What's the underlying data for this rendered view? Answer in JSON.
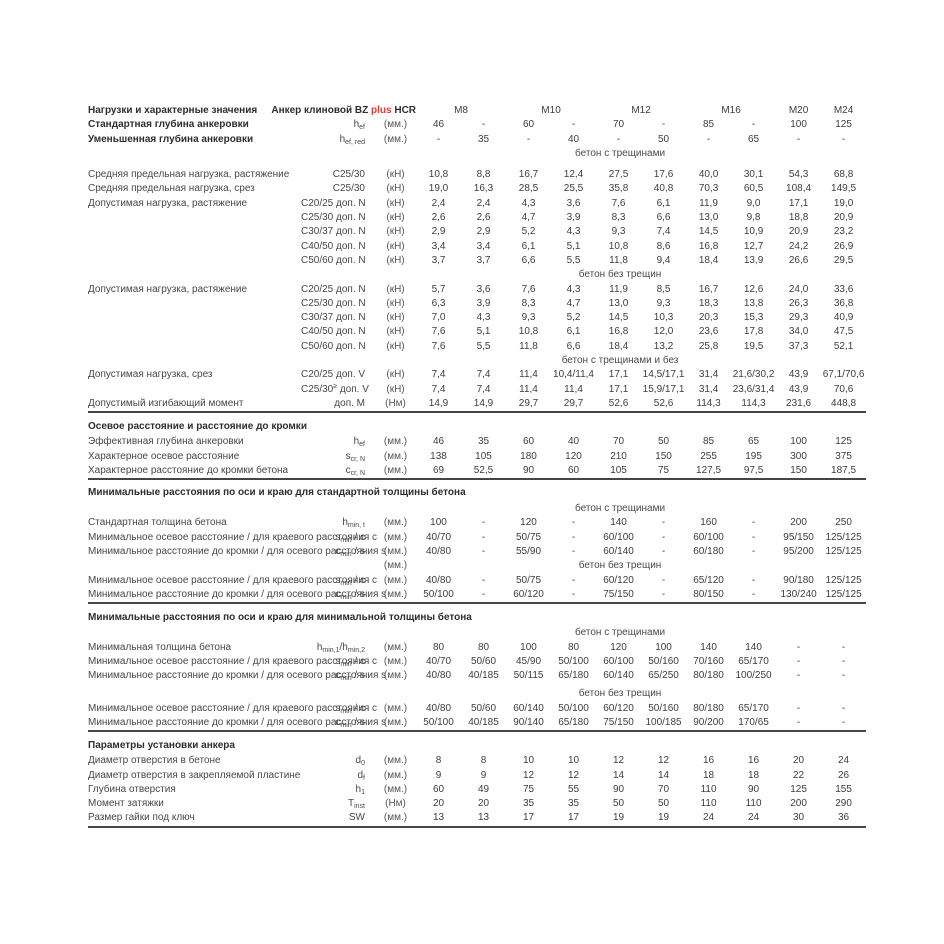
{
  "meta": {
    "document_type": "anchor-specification-table",
    "accent_red": "#e6392f",
    "rule_color": "#454545",
    "text_color": "#474747"
  },
  "table": {
    "header": {
      "label": "Нагрузки и характерные значения",
      "product": {
        "pre": "Анкер клиновой BZ",
        "highlight": "plus",
        "post": "HCR"
      },
      "sizes": [
        "M8",
        "M10",
        "M12",
        "M16",
        "M20",
        "M24"
      ]
    },
    "units": {
      "mm": "(мм.)",
      "kn": "(кН)",
      "nm": "(Нм)"
    },
    "rows": [
      {
        "k": "r",
        "b": true,
        "l": "Стандартная глубина анкеровки",
        "sym": [
          [
            "t",
            "h"
          ],
          [
            "s",
            "ef"
          ]
        ],
        "u": "(мм.)",
        "v": [
          "46",
          "-",
          "60",
          "-",
          "70",
          "-",
          "85",
          "-",
          "100",
          "125"
        ]
      },
      {
        "k": "r",
        "b": true,
        "l": "Уменьшенная глубина анкеровки",
        "sym": [
          [
            "t",
            "h"
          ],
          [
            "s",
            "ef, red"
          ]
        ],
        "u": "(мм.)",
        "v": [
          "-",
          "35",
          "-",
          "40",
          "-",
          "50",
          "-",
          "65",
          "-",
          "-"
        ]
      },
      {
        "k": "s",
        "text": "бетон с трещинами"
      },
      {
        "k": "g",
        "h": 7
      },
      {
        "k": "r",
        "l": "Средняя предельная нагрузка, растяжение",
        "sym": [
          [
            "t",
            "C25/30"
          ]
        ],
        "u": "(кН)",
        "v": [
          "10,8",
          "8,8",
          "16,7",
          "12,4",
          "27,5",
          "17,6",
          "40,0",
          "30,1",
          "54,3",
          "68,8"
        ]
      },
      {
        "k": "r",
        "l": "Средняя предельная нагрузка, срез",
        "sym": [
          [
            "t",
            "C25/30"
          ]
        ],
        "u": "(кН)",
        "v": [
          "19,0",
          "16,3",
          "28,5",
          "25,5",
          "35,8",
          "40,8",
          "70,3",
          "60,5",
          "108,4",
          "149,5"
        ]
      },
      {
        "k": "r",
        "l": "Допустимая нагрузка, растяжение",
        "sym": [
          [
            "t",
            "C20/25 доп. N"
          ]
        ],
        "u": "(кН)",
        "v": [
          "2,4",
          "2,4",
          "4,3",
          "3,6",
          "7,6",
          "6,1",
          "11,9",
          "9,0",
          "17,1",
          "19,0"
        ]
      },
      {
        "k": "r",
        "l": "",
        "sym": [
          [
            "t",
            "C25/30 доп. N"
          ]
        ],
        "u": "(кН)",
        "v": [
          "2,6",
          "2,6",
          "4,7",
          "3,9",
          "8,3",
          "6,6",
          "13,0",
          "9,8",
          "18,8",
          "20,9"
        ]
      },
      {
        "k": "r",
        "l": "",
        "sym": [
          [
            "t",
            "C30/37 доп. N"
          ]
        ],
        "u": "(кН)",
        "v": [
          "2,9",
          "2,9",
          "5,2",
          "4,3",
          "9,3",
          "7,4",
          "14,5",
          "10,9",
          "20,9",
          "23,2"
        ]
      },
      {
        "k": "r",
        "l": "",
        "sym": [
          [
            "t",
            "C40/50 доп. N"
          ]
        ],
        "u": "(кН)",
        "v": [
          "3,4",
          "3,4",
          "6,1",
          "5,1",
          "10,8",
          "8,6",
          "16,8",
          "12,7",
          "24,2",
          "26,9"
        ]
      },
      {
        "k": "r",
        "l": "",
        "sym": [
          [
            "t",
            "C50/60 доп. N"
          ]
        ],
        "u": "(кН)",
        "v": [
          "3,7",
          "3,7",
          "6,6",
          "5,5",
          "11,8",
          "9,4",
          "18,4",
          "13,9",
          "26,6",
          "29,5"
        ]
      },
      {
        "k": "s",
        "text": "бетон без трещин"
      },
      {
        "k": "r",
        "l": "Допустимая нагрузка, растяжение",
        "sym": [
          [
            "t",
            "C20/25 доп. N"
          ]
        ],
        "u": "(кН)",
        "v": [
          "5,7",
          "3,6",
          "7,6",
          "4,3",
          "11,9",
          "8,5",
          "16,7",
          "12,6",
          "24,0",
          "33,6"
        ]
      },
      {
        "k": "r",
        "l": "",
        "sym": [
          [
            "t",
            "C25/30 доп. N"
          ]
        ],
        "u": "(кН)",
        "v": [
          "6,3",
          "3,9",
          "8,3",
          "4,7",
          "13,0",
          "9,3",
          "18,3",
          "13,8",
          "26,3",
          "36,8"
        ]
      },
      {
        "k": "r",
        "l": "",
        "sym": [
          [
            "t",
            "C30/37 доп. N"
          ]
        ],
        "u": "(кН)",
        "v": [
          "7,0",
          "4,3",
          "9,3",
          "5,2",
          "14,5",
          "10,3",
          "20,3",
          "15,3",
          "29,3",
          "40,9"
        ]
      },
      {
        "k": "r",
        "l": "",
        "sym": [
          [
            "t",
            "C40/50 доп. N"
          ]
        ],
        "u": "(кН)",
        "v": [
          "7,6",
          "5,1",
          "10,8",
          "6,1",
          "16,8",
          "12,0",
          "23,6",
          "17,8",
          "34,0",
          "47,5"
        ]
      },
      {
        "k": "r",
        "l": "",
        "sym": [
          [
            "t",
            "C50/60 доп. N"
          ]
        ],
        "u": "(кН)",
        "v": [
          "7,6",
          "5,5",
          "11,8",
          "6,6",
          "18,4",
          "13,2",
          "25,8",
          "19,5",
          "37,3",
          "52,1"
        ]
      },
      {
        "k": "s",
        "text": "бетон с трещинами и без"
      },
      {
        "k": "r",
        "l": "Допустимая нагрузка, срез",
        "sym": [
          [
            "t",
            "C20/25 доп. V"
          ]
        ],
        "u": "(кН)",
        "v": [
          "7,4",
          "7,4",
          "11,4",
          "10,4/11,4",
          "17,1",
          "14,5/17,1",
          "31,4",
          "21,6/30,2",
          "43,9",
          "67,1/70,6"
        ]
      },
      {
        "k": "r",
        "l": "",
        "sym": [
          [
            "t",
            "C25/30"
          ],
          [
            "p",
            "≥"
          ],
          [
            "t",
            " доп. V"
          ]
        ],
        "u": "(кН)",
        "v": [
          "7,4",
          "7,4",
          "11,4",
          "11,4",
          "17,1",
          "15,9/17,1",
          "31,4",
          "23,6/31,4",
          "43,9",
          "70,6"
        ]
      },
      {
        "k": "r",
        "l": "Допустимый изгибающий момент",
        "sym": [
          [
            "t",
            "доп. M"
          ]
        ],
        "u": "(Нм)",
        "v": [
          "14,9",
          "14,9",
          "29,7",
          "29,7",
          "52,6",
          "52,6",
          "114,3",
          "114,3",
          "231,6",
          "448,8"
        ]
      },
      {
        "k": "t",
        "text": "Осевое расстояние и расстояние до кромки"
      },
      {
        "k": "r",
        "l": "Эффективная глубина анкеровки",
        "sym": [
          [
            "t",
            "h"
          ],
          [
            "s",
            "ef"
          ]
        ],
        "u": "(мм.)",
        "v": [
          "46",
          "35",
          "60",
          "40",
          "70",
          "50",
          "85",
          "65",
          "100",
          "125"
        ]
      },
      {
        "k": "r",
        "l": "Характерное осевое расстояние",
        "sym": [
          [
            "t",
            "s"
          ],
          [
            "s",
            "cr, N"
          ]
        ],
        "u": "(мм.)",
        "v": [
          "138",
          "105",
          "180",
          "120",
          "210",
          "150",
          "255",
          "195",
          "300",
          "375"
        ]
      },
      {
        "k": "r",
        "l": "Характерное расстояние до кромки бетона",
        "sym": [
          [
            "t",
            "c"
          ],
          [
            "s",
            "cr, N"
          ]
        ],
        "u": "(мм.)",
        "v": [
          "69",
          "52,5",
          "90",
          "60",
          "105",
          "75",
          "127,5",
          "97,5",
          "150",
          "187,5"
        ]
      },
      {
        "k": "t",
        "text": "Минимальные расстояния по оси и краю для стандартной толщины бетона"
      },
      {
        "k": "s",
        "text": "бетон с трещинами"
      },
      {
        "k": "r",
        "l": "Стандартная толщина бетона",
        "sym": [
          [
            "t",
            "h"
          ],
          [
            "s",
            "min, t"
          ]
        ],
        "u": "(мм.)",
        "v": [
          "100",
          "-",
          "120",
          "-",
          "140",
          "-",
          "160",
          "-",
          "200",
          "250"
        ]
      },
      {
        "k": "r",
        "l": "Минимальное осевое расстояние / для краевого расстояния с",
        "sym": [
          [
            "t",
            "s"
          ],
          [
            "s",
            "min"
          ],
          [
            "t",
            " / c"
          ]
        ],
        "u": "(мм.)",
        "v": [
          "40/70",
          "-",
          "50/75",
          "-",
          "60/100",
          "-",
          "60/100",
          "-",
          "95/150",
          "125/125"
        ]
      },
      {
        "k": "r",
        "l": "Минимальное расстояние до кромки / для осевого расстояния s",
        "sym": [
          [
            "t",
            "c"
          ],
          [
            "s",
            "min"
          ],
          [
            "t",
            " / s"
          ]
        ],
        "u": "(мм.)",
        "v": [
          "40/80",
          "-",
          "55/90",
          "-",
          "60/140",
          "-",
          "60/180",
          "-",
          "95/200",
          "125/125"
        ]
      },
      {
        "k": "s",
        "text": "бетон без трещин",
        "u": "(мм.)"
      },
      {
        "k": "r",
        "l": "Минимальное осевое расстояние / для краевого расстояния с",
        "sym": [
          [
            "t",
            "s"
          ],
          [
            "s",
            "min"
          ],
          [
            "t",
            " / c"
          ]
        ],
        "u": "(мм.)",
        "v": [
          "40/80",
          "-",
          "50/75",
          "-",
          "60/120",
          "-",
          "65/120",
          "-",
          "90/180",
          "125/125"
        ]
      },
      {
        "k": "r",
        "l": "Минимальное расстояние до кромки / для осевого расстояния s",
        "sym": [
          [
            "t",
            "c"
          ],
          [
            "s",
            "min"
          ],
          [
            "t",
            " / s"
          ]
        ],
        "u": "(мм.)",
        "v": [
          "50/100",
          "-",
          "60/120",
          "-",
          "75/150",
          "-",
          "80/150",
          "-",
          "130/240",
          "125/125"
        ]
      },
      {
        "k": "t",
        "text": "Минимальные расстояния по оси и краю для минимальной толщины бетона"
      },
      {
        "k": "s",
        "text": "бетон с трещинами"
      },
      {
        "k": "r",
        "l": "Минимальная толщина бетона",
        "sym": [
          [
            "t",
            "h"
          ],
          [
            "s",
            "min,1"
          ],
          [
            "t",
            "/h"
          ],
          [
            "s",
            "min,2"
          ]
        ],
        "u": "(мм.)",
        "v": [
          "80",
          "80",
          "100",
          "80",
          "120",
          "100",
          "140",
          "140",
          "-",
          "-"
        ]
      },
      {
        "k": "r",
        "l": "Минимальное осевое расстояние / для краевого расстояния с",
        "sym": [
          [
            "t",
            "s"
          ],
          [
            "s",
            "min"
          ],
          [
            "t",
            " / c"
          ]
        ],
        "u": "(мм.)",
        "v": [
          "40/70",
          "50/60",
          "45/90",
          "50/100",
          "60/100",
          "50/160",
          "70/160",
          "65/170",
          "-",
          "-"
        ]
      },
      {
        "k": "r",
        "l": "Минимальное расстояние до кромки / для осевого расстояния s",
        "sym": [
          [
            "t",
            "c"
          ],
          [
            "s",
            "min"
          ],
          [
            "t",
            " / s"
          ]
        ],
        "u": "(мм.)",
        "v": [
          "40/80",
          "40/185",
          "50/115",
          "65/180",
          "60/140",
          "65/250",
          "80/180",
          "100/250",
          "-",
          "-"
        ]
      },
      {
        "k": "g",
        "h": 4
      },
      {
        "k": "s",
        "text": "бетон без трещин"
      },
      {
        "k": "r",
        "l": "Минимальное осевое расстояние / для краевого расстояния с",
        "sym": [
          [
            "t",
            "s"
          ],
          [
            "s",
            "min"
          ],
          [
            "t",
            " / c"
          ]
        ],
        "u": "(мм.)",
        "v": [
          "40/80",
          "50/60",
          "60/140",
          "50/100",
          "60/120",
          "50/160",
          "80/180",
          "65/170",
          "-",
          "-"
        ]
      },
      {
        "k": "r",
        "l": "Минимальное расстояние до кромки / для осевого расстояния s",
        "sym": [
          [
            "t",
            "c"
          ],
          [
            "s",
            "min"
          ],
          [
            "t",
            " / s"
          ]
        ],
        "u": "(мм.)",
        "v": [
          "50/100",
          "40/185",
          "90/140",
          "65/180",
          "75/150",
          "100/185",
          "90/200",
          "170/65",
          "-",
          "-"
        ]
      },
      {
        "k": "t",
        "text": "Параметры установки анкера"
      },
      {
        "k": "r",
        "l": "Диаметр отверстия в бетоне",
        "sym": [
          [
            "t",
            "d"
          ],
          [
            "s",
            "0"
          ]
        ],
        "u": "(мм.)",
        "v": [
          "8",
          "8",
          "10",
          "10",
          "12",
          "12",
          "16",
          "16",
          "20",
          "24"
        ]
      },
      {
        "k": "r",
        "l": "Диаметр отверстия в закрепляемой пластине",
        "sym": [
          [
            "t",
            "d"
          ],
          [
            "s",
            "f"
          ]
        ],
        "u": "(мм.)",
        "v": [
          "9",
          "9",
          "12",
          "12",
          "14",
          "14",
          "18",
          "18",
          "22",
          "26"
        ]
      },
      {
        "k": "r",
        "l": "Глубина отверстия",
        "sym": [
          [
            "t",
            "h"
          ],
          [
            "s",
            "1"
          ]
        ],
        "u": "(мм.)",
        "v": [
          "60",
          "49",
          "75",
          "55",
          "90",
          "70",
          "110",
          "90",
          "125",
          "155"
        ]
      },
      {
        "k": "r",
        "l": "Момент затяжки",
        "sym": [
          [
            "t",
            "T"
          ],
          [
            "s",
            "inst"
          ]
        ],
        "u": "(Нм)",
        "v": [
          "20",
          "20",
          "35",
          "35",
          "50",
          "50",
          "110",
          "110",
          "200",
          "290"
        ]
      },
      {
        "k": "r",
        "l": "Размер гайки под ключ",
        "sym": [
          [
            "t",
            "SW"
          ]
        ],
        "u": "(мм.)",
        "v": [
          "13",
          "13",
          "17",
          "17",
          "19",
          "19",
          "24",
          "24",
          "30",
          "36"
        ]
      }
    ]
  }
}
